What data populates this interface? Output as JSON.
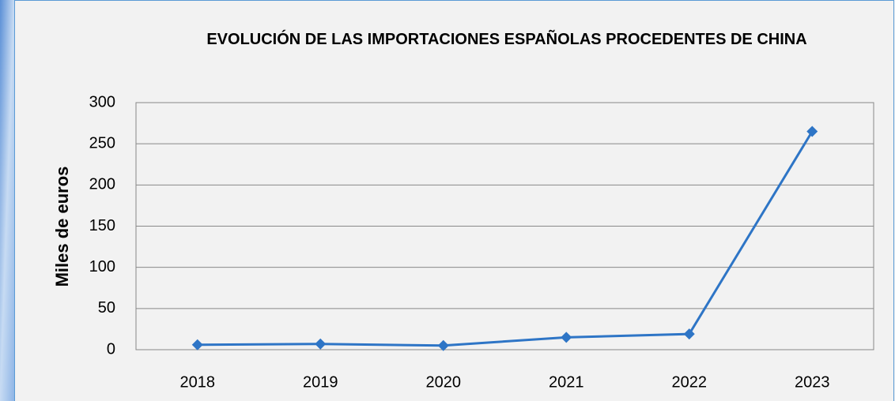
{
  "chart_data": {
    "type": "line",
    "title": "EVOLUCIÓN DE LAS IMPORTACIONES ESPAÑOLAS PROCEDENTES DE CHINA",
    "y_label": "Miles de euros",
    "categories": [
      "2018",
      "2019",
      "2020",
      "2021",
      "2022",
      "2023"
    ],
    "values": [
      6,
      7,
      5,
      15,
      19,
      265
    ],
    "color": "#2e75c6",
    "ylim": [
      0,
      300
    ],
    "yticks": [
      0,
      50,
      100,
      150,
      200,
      250,
      300
    ],
    "grid": true
  }
}
